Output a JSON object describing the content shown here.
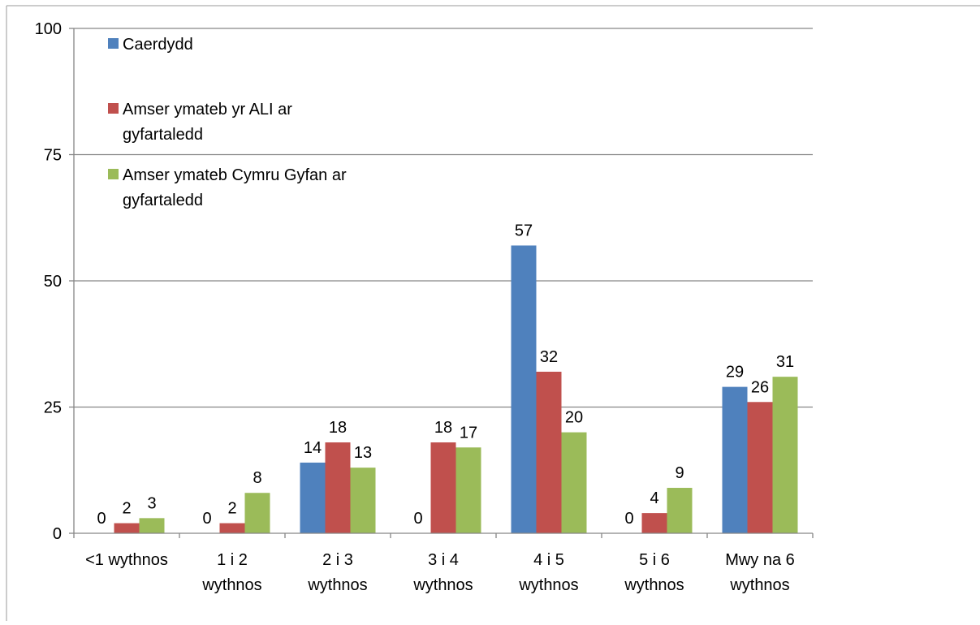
{
  "chart_data": {
    "type": "bar",
    "title": "",
    "xlabel": "",
    "ylabel": "",
    "ylim": [
      0,
      100
    ],
    "yticks": [
      0,
      25,
      50,
      75,
      100
    ],
    "grid": true,
    "legend_position": "top-left",
    "categories": [
      [
        "<1 wythnos"
      ],
      [
        "1 i 2",
        "wythnos"
      ],
      [
        "2 i 3",
        "wythnos"
      ],
      [
        "3 i 4",
        "wythnos"
      ],
      [
        "4 i 5",
        "wythnos"
      ],
      [
        "5 i 6",
        "wythnos"
      ],
      [
        "Mwy na 6",
        "wythnos"
      ]
    ],
    "series": [
      {
        "name": [
          "Caerdydd"
        ],
        "color": "#4F81BD",
        "values": [
          0,
          0,
          14,
          0,
          57,
          0,
          29
        ]
      },
      {
        "name": [
          "Amser ymateb yr ALI ar",
          "gyfartaledd"
        ],
        "color": "#C0504D",
        "values": [
          2,
          2,
          18,
          18,
          32,
          4,
          26
        ]
      },
      {
        "name": [
          "Amser ymateb Cymru Gyfan ar",
          "gyfartaledd"
        ],
        "color": "#9BBB59",
        "values": [
          3,
          8,
          13,
          17,
          20,
          9,
          31
        ]
      }
    ]
  }
}
